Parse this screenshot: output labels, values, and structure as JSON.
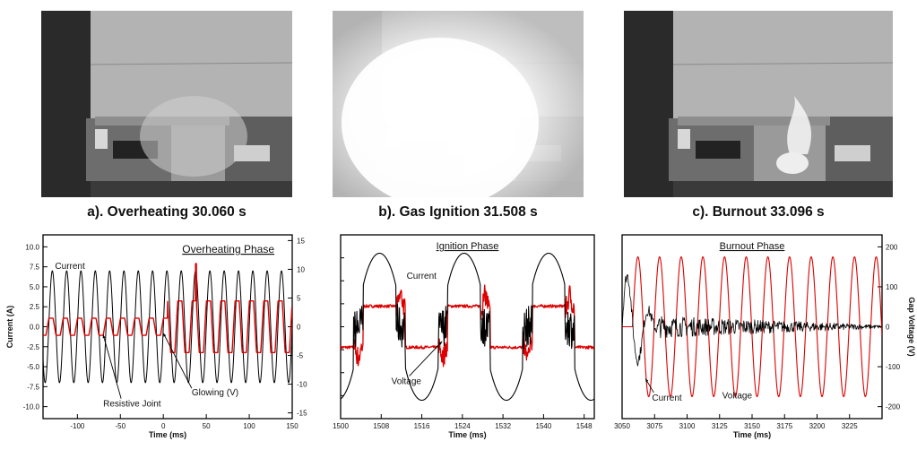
{
  "panels": [
    {
      "caption": "a). Overheating 30.060 s",
      "photo_style": "dark"
    },
    {
      "caption": "b). Gas Ignition 31.508 s",
      "photo_style": "bright"
    },
    {
      "caption": "c). Burnout 33.096 s",
      "photo_style": "flame"
    }
  ],
  "chart_data": [
    {
      "type": "line",
      "title": "Overheating Phase",
      "xlabel": "Time (ms)",
      "ylabel": "Current (A)",
      "y2label": "",
      "xlim": [
        -140,
        150
      ],
      "ylim": [
        -11.5,
        11.5
      ],
      "y2lim": [
        -16,
        16
      ],
      "xticks": [
        -100,
        -50,
        0,
        50,
        100,
        150
      ],
      "yticks": [
        -10.0,
        -7.5,
        -5.0,
        -2.5,
        0.0,
        2.5,
        5.0,
        7.5,
        10.0
      ],
      "y2ticks": [
        -15,
        -10,
        -5,
        0,
        5,
        10,
        15
      ],
      "grid": false,
      "series": [
        {
          "name": "Current",
          "axis": "left",
          "color": "#000000",
          "waveform": "sine",
          "frequency_hz": 60,
          "amplitude": 7.0,
          "offset": 0.0
        },
        {
          "name": "Glowing (V)",
          "axis": "right",
          "color": "#dd0000",
          "waveform": "distorted",
          "frequency_hz": 60,
          "segments": [
            [
              -140,
              5,
              1.5
            ],
            [
              5,
              150,
              4.5
            ]
          ],
          "offset": 0.0,
          "spike_x": 38,
          "spike_y": 11
        }
      ],
      "annotations": [
        {
          "text": "Current",
          "x": -126,
          "y": 7.0
        },
        {
          "text": "Resistive Joint",
          "x": -70,
          "y": -10.0,
          "arrow_to": [
            -70,
            -1.0
          ]
        },
        {
          "text": "Glowing (V)",
          "x": 33,
          "y": -8.6,
          "arrow_to": [
            0,
            -0.8
          ]
        }
      ]
    },
    {
      "type": "line",
      "title": "Ignition Phase",
      "xlabel": "Time (ms)",
      "ylabel": "",
      "y2label": "",
      "xlim": [
        1500,
        1550
      ],
      "ylim": [
        -1.25,
        1.25
      ],
      "xticks": [
        1500,
        1508,
        1516,
        1524,
        1532,
        1540,
        1548
      ],
      "grid": false,
      "series": [
        {
          "name": "Current",
          "axis": "left",
          "color": "#000000",
          "waveform": "arc-current",
          "frequency_hz": 60
        },
        {
          "name": "Voltage",
          "axis": "left",
          "color": "#dd0000",
          "waveform": "arc-voltage",
          "frequency_hz": 60
        }
      ],
      "annotations": [
        {
          "text": "Current",
          "x": 1513,
          "y": 0.65
        },
        {
          "text": "Voltage",
          "x": 1510,
          "y": -0.78,
          "arrow_to": [
            1520,
            -0.2
          ]
        }
      ]
    },
    {
      "type": "line",
      "title": "Burnout Phase",
      "xlabel": "Time (ms)",
      "ylabel": "",
      "y2label": "Gap Voltage (V)",
      "xlim": [
        3050,
        3250
      ],
      "y2lim": [
        -230,
        230
      ],
      "xticks": [
        3050,
        3075,
        3100,
        3125,
        3150,
        3175,
        3200,
        3225
      ],
      "y2ticks": [
        -200,
        -100,
        0,
        100,
        200
      ],
      "grid": false,
      "series": [
        {
          "name": "Voltage",
          "axis": "right",
          "color": "#dd0000",
          "waveform": "sine",
          "frequency_hz": 60,
          "amplitude": 175,
          "start_x": 3058
        },
        {
          "name": "Current",
          "axis": "right",
          "color": "#000000",
          "waveform": "noise",
          "amplitude_start": 150,
          "amplitude_end": 0,
          "decay_until": 3078,
          "noise": 28
        }
      ],
      "annotations": [
        {
          "text": "Current",
          "x": 3073,
          "y": -185,
          "arrow_to": [
            3068,
            -130
          ]
        },
        {
          "text": "Voltage",
          "x": 3127,
          "y": -180
        }
      ]
    }
  ]
}
